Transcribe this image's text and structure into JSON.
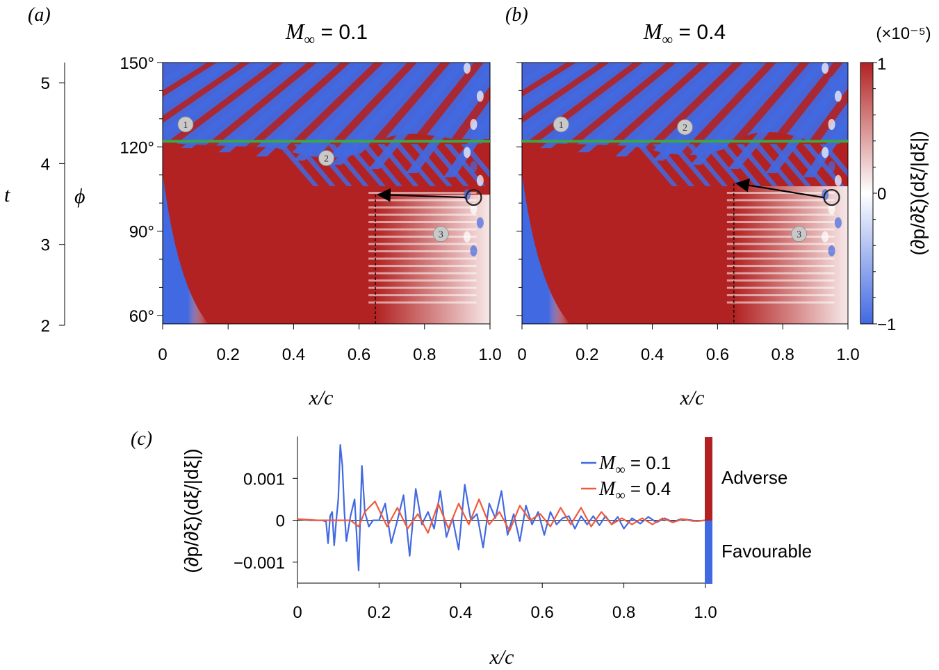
{
  "figure": {
    "colorbar": {
      "exponent_label": "(×10⁻⁵)",
      "quantity_label": "(∂p/∂ξ)(dξ/|dξ|)",
      "ticks": [
        {
          "value": 1,
          "label": "1"
        },
        {
          "value": 0,
          "label": "0"
        },
        {
          "value": -1,
          "label": "−1"
        }
      ],
      "range": [
        -1,
        1
      ],
      "colors": {
        "low": "#4169e1",
        "mid": "#ffffff",
        "high": "#b22222"
      }
    },
    "colors": {
      "adverse": "#b22222",
      "favourable": "#4169e1",
      "blue_line": "#4169e1",
      "red_line": "#f05a3c",
      "green_line": "#3aa845",
      "marker_fill": "#c9c9c9"
    }
  },
  "chart_data": [
    {
      "type": "heatmap",
      "panel": "(a)",
      "title_prefix": "M",
      "title_sub": "∞",
      "title_suffix": " = 0.1",
      "xlabel": "x/c",
      "xlim": [
        0,
        1.0
      ],
      "xticks": [
        {
          "value": 0,
          "label": "0"
        },
        {
          "value": 0.2,
          "label": "0.2"
        },
        {
          "value": 0.4,
          "label": "0.4"
        },
        {
          "value": 0.6,
          "label": "0.6"
        },
        {
          "value": 0.8,
          "label": "0.8"
        },
        {
          "value": 1.0,
          "label": "1.0"
        }
      ],
      "ylabel_phi": "ϕ",
      "ylim_phi": [
        57,
        150
      ],
      "yticks_phi": [
        {
          "value": 60,
          "label": "60°"
        },
        {
          "value": 90,
          "label": "90°"
        },
        {
          "value": 120,
          "label": "120°"
        },
        {
          "value": 150,
          "label": "150°"
        }
      ],
      "ylabel_t": "t",
      "ylim_t": [
        2,
        5.25
      ],
      "yticks_t": [
        {
          "value": 2,
          "label": "2"
        },
        {
          "value": 3,
          "label": "3"
        },
        {
          "value": 4,
          "label": "4"
        },
        {
          "value": 5,
          "label": "5"
        }
      ],
      "green_line_phi": 122,
      "dashed_x": 0.65,
      "arrow": {
        "from": [
          0.95,
          102
        ],
        "to": [
          0.65,
          103
        ]
      },
      "markers": [
        {
          "label": "1",
          "x": 0.07,
          "phi": 128
        },
        {
          "label": "2",
          "x": 0.5,
          "phi": 116
        },
        {
          "label": "3",
          "x": 0.85,
          "phi": 89
        }
      ]
    },
    {
      "type": "heatmap",
      "panel": "(b)",
      "title_prefix": "M",
      "title_sub": "∞",
      "title_suffix": " = 0.4",
      "xlabel": "x/c",
      "xlim": [
        0,
        1.0
      ],
      "xticks": [
        {
          "value": 0,
          "label": "0"
        },
        {
          "value": 0.2,
          "label": "0.2"
        },
        {
          "value": 0.4,
          "label": "0.4"
        },
        {
          "value": 0.6,
          "label": "0.6"
        },
        {
          "value": 0.8,
          "label": "0.8"
        },
        {
          "value": 1.0,
          "label": "1.0"
        }
      ],
      "ylim_phi": [
        57,
        150
      ],
      "green_line_phi": 122,
      "dashed_x": 0.65,
      "arrow": {
        "from": [
          0.95,
          102
        ],
        "to": [
          0.65,
          107
        ]
      },
      "markers": [
        {
          "label": "1",
          "x": 0.12,
          "phi": 128
        },
        {
          "label": "2",
          "x": 0.5,
          "phi": 127
        },
        {
          "label": "3",
          "x": 0.85,
          "phi": 89
        }
      ]
    },
    {
      "type": "line",
      "panel": "(c)",
      "xlabel": "x/c",
      "ylabel": "(∂p/∂ξ)(dξ/|dξ|)",
      "xlim": [
        0,
        1.0
      ],
      "ylim": [
        -0.0015,
        0.002
      ],
      "xticks": [
        {
          "value": 0,
          "label": "0"
        },
        {
          "value": 0.2,
          "label": "0.2"
        },
        {
          "value": 0.4,
          "label": "0.4"
        },
        {
          "value": 0.6,
          "label": "0.6"
        },
        {
          "value": 0.8,
          "label": "0.8"
        },
        {
          "value": 1.0,
          "label": "1.0"
        }
      ],
      "yticks": [
        {
          "value": 0.001,
          "label": "0.001"
        },
        {
          "value": 0,
          "label": "0"
        },
        {
          "value": -0.001,
          "label": "−0.001"
        }
      ],
      "series": [
        {
          "name_prefix": "M",
          "name_sub": "∞",
          "name_suffix": " = 0.1",
          "color": "#4169e1",
          "x": [
            0,
            0.03,
            0.06,
            0.07,
            0.075,
            0.08,
            0.085,
            0.09,
            0.095,
            0.1,
            0.105,
            0.11,
            0.115,
            0.12,
            0.13,
            0.14,
            0.15,
            0.158,
            0.165,
            0.175,
            0.185,
            0.2,
            0.215,
            0.23,
            0.245,
            0.26,
            0.275,
            0.29,
            0.305,
            0.32,
            0.335,
            0.35,
            0.365,
            0.38,
            0.395,
            0.41,
            0.425,
            0.44,
            0.455,
            0.47,
            0.485,
            0.5,
            0.515,
            0.53,
            0.545,
            0.56,
            0.575,
            0.59,
            0.605,
            0.62,
            0.635,
            0.65,
            0.665,
            0.68,
            0.695,
            0.71,
            0.725,
            0.74,
            0.755,
            0.77,
            0.785,
            0.8,
            0.82,
            0.84,
            0.86,
            0.88,
            0.9,
            0.92,
            0.94,
            0.96,
            0.98,
            1.0
          ],
          "y": [
            3e-05,
            0.0,
            0.0,
            -3e-05,
            -0.00055,
            0.0001,
            0.0002,
            -0.0006,
            0.0,
            0.0005,
            0.0018,
            0.0013,
            0.0002,
            -0.0005,
            0.0001,
            0.0005,
            -0.0012,
            0.0013,
            0.0002,
            -0.00015,
            0.0,
            0.0,
            0.0004,
            -0.00055,
            0.0,
            0.0006,
            -0.00085,
            0.00075,
            -0.0001,
            0.0002,
            -0.0002,
            0.0007,
            -0.0004,
            5e-05,
            -0.0007,
            0.00085,
            0.0,
            0.00015,
            -0.00065,
            0.0004,
            5e-05,
            0.0007,
            -0.00035,
            0.00015,
            -0.0005,
            0.00035,
            -0.0001,
            0.0002,
            -0.00035,
            0.0002,
            -0.0001,
            5e-05,
            0.0001,
            -0.0002,
            0.0001,
            -0.0001,
            0.0001,
            -0.00012,
            0.0001,
            -0.0001,
            8e-05,
            -0.0002,
            5e-05,
            -8e-05,
            8e-05,
            -5e-05,
            5e-05,
            -4e-05,
            3e-05,
            1e-05,
            -2e-05,
            0.0
          ]
        },
        {
          "name_prefix": "M",
          "name_sub": "∞",
          "name_suffix": " = 0.4",
          "color": "#f05a3c",
          "x": [
            0,
            0.05,
            0.1,
            0.13,
            0.15,
            0.165,
            0.19,
            0.22,
            0.245,
            0.27,
            0.295,
            0.32,
            0.345,
            0.37,
            0.395,
            0.42,
            0.445,
            0.47,
            0.495,
            0.52,
            0.545,
            0.57,
            0.595,
            0.62,
            0.645,
            0.67,
            0.695,
            0.72,
            0.745,
            0.77,
            0.795,
            0.82,
            0.845,
            0.87,
            0.895,
            0.92,
            0.945,
            0.97,
            1.0
          ],
          "y": [
            3e-05,
            0.0,
            0.0,
            0.0,
            -0.00015,
            0.0002,
            0.00045,
            -0.00015,
            0.0003,
            -0.0002,
            0.00015,
            -0.0003,
            0.0004,
            -0.0002,
            0.0004,
            -0.0001,
            0.0005,
            -0.0001,
            0.0002,
            -0.00025,
            0.00035,
            0.0,
            0.00015,
            -0.00015,
            0.0003,
            -0.0001,
            0.0003,
            -0.00015,
            0.0002,
            -0.0001,
            5e-05,
            -0.0001,
            5e-05,
            -0.0001,
            5e-05,
            -5e-05,
            3e-05,
            -2e-05,
            0.0
          ]
        }
      ],
      "band_labels": {
        "adverse": "Adverse",
        "favourable": "Favourable"
      }
    }
  ]
}
